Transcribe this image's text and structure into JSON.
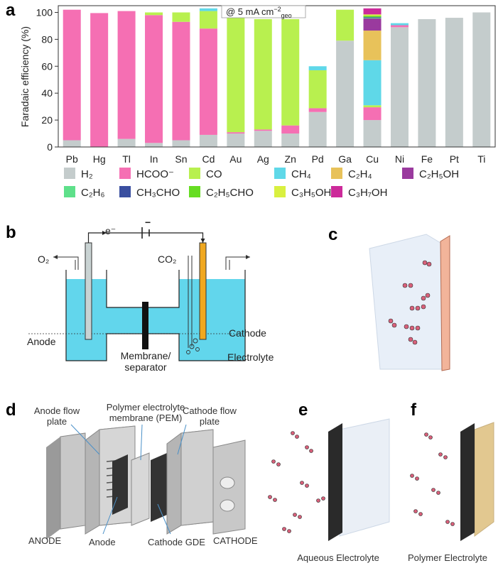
{
  "chart_data": {
    "type": "stacked_bar",
    "panel_label": "a",
    "y_label": "Faradaic efficiency (%)",
    "annotation": [
      "@ 5 mA cm",
      "−2",
      "geo"
    ],
    "categories": [
      "Pb",
      "Hg",
      "Tl",
      "In",
      "Sn",
      "Cd",
      "Au",
      "Ag",
      "Zn",
      "Pd",
      "Ga",
      "Cu",
      "Ni",
      "Fe",
      "Pt",
      "Ti"
    ],
    "series": [
      {
        "name": "H₂",
        "color": "#c4cccc",
        "values": [
          5,
          0,
          6,
          3,
          5,
          9,
          10,
          12,
          10,
          26,
          79,
          20,
          89,
          95,
          96,
          100
        ]
      },
      {
        "name": "HCOO⁻",
        "color": "#f56fb3",
        "values": [
          97,
          99.5,
          95,
          95,
          88,
          79,
          1,
          1,
          6,
          2.8,
          0,
          9.5,
          1.5,
          0,
          0,
          0
        ]
      },
      {
        "name": "CO",
        "color": "#b8f04f",
        "values": [
          0,
          0,
          0,
          2,
          7,
          13,
          87,
          82,
          79,
          28.2,
          23,
          1.5,
          0,
          0,
          0,
          0
        ]
      },
      {
        "name": "CH₄",
        "color": "#5fd8e8",
        "values": [
          0,
          0,
          0,
          0,
          0,
          2,
          0,
          0,
          0,
          3,
          0,
          33.5,
          1.5,
          0,
          0,
          0
        ]
      },
      {
        "name": "C₂H₄",
        "color": "#e8c25a",
        "values": [
          0,
          0,
          0,
          0,
          0,
          0,
          0,
          0,
          0,
          0,
          0,
          22,
          0,
          0,
          0,
          0
        ]
      },
      {
        "name": "C₂H₅OH",
        "color": "#9a3a9e",
        "values": [
          0,
          0,
          0,
          0,
          0,
          0,
          0,
          0,
          0,
          0,
          0,
          9,
          0,
          0,
          0,
          0
        ]
      },
      {
        "name": "C₂H₆",
        "color": "#5ee08a",
        "values": [
          0,
          0,
          0,
          0,
          0,
          0,
          0,
          0,
          0,
          0,
          0,
          0.5,
          0,
          0,
          0,
          0
        ]
      },
      {
        "name": "CH₃CHO",
        "color": "#3a4fa0",
        "values": [
          0,
          0,
          0,
          0,
          0,
          0,
          0,
          0,
          0,
          0,
          0,
          0.5,
          0,
          0,
          0,
          0
        ]
      },
      {
        "name": "C₂H₅CHO",
        "color": "#66dd22",
        "values": [
          0,
          0,
          0,
          0,
          0,
          0,
          0,
          0,
          0,
          0,
          0,
          1,
          0,
          0,
          0,
          0
        ]
      },
      {
        "name": "C₃H₅OH",
        "color": "#d9f040",
        "values": [
          0,
          0,
          0,
          0,
          0,
          0,
          0,
          0,
          0,
          0,
          0,
          1,
          0,
          0,
          0,
          0
        ]
      },
      {
        "name": "C₃H₇OH",
        "color": "#cc2a9a",
        "values": [
          0,
          0,
          0,
          0,
          0,
          0,
          0,
          0,
          0,
          0,
          0,
          4.5,
          0,
          0,
          0,
          0
        ]
      }
    ],
    "ylim": [
      0,
      105
    ],
    "yticks": [
      0,
      20,
      40,
      60,
      80,
      100
    ]
  },
  "panel_b": {
    "label": "b",
    "electron": "e⁻",
    "polarity": "−",
    "o2": "O₂",
    "co2": "CO₂",
    "anode": "Anode",
    "cathode": "Cathode",
    "membrane": [
      "Membrane/",
      "separator"
    ],
    "electrolyte": "Electrolyte"
  },
  "panel_c": {
    "label": "c"
  },
  "panel_d": {
    "label": "d",
    "anode_flow_plate": [
      "Anode flow",
      "plate"
    ],
    "pem": [
      "Polymer electrolyte",
      "membrane (PEM)"
    ],
    "cathode_flow_plate": [
      "Cathode flow",
      "plate"
    ],
    "anode_side": "ANODE",
    "anode": "Anode",
    "cathode_gde": "Cathode GDE",
    "cathode_side": "CATHODE"
  },
  "panel_e": {
    "label": "e",
    "caption": "Aqueous Electrolyte"
  },
  "panel_f": {
    "label": "f",
    "caption": "Polymer Electrolyte"
  }
}
